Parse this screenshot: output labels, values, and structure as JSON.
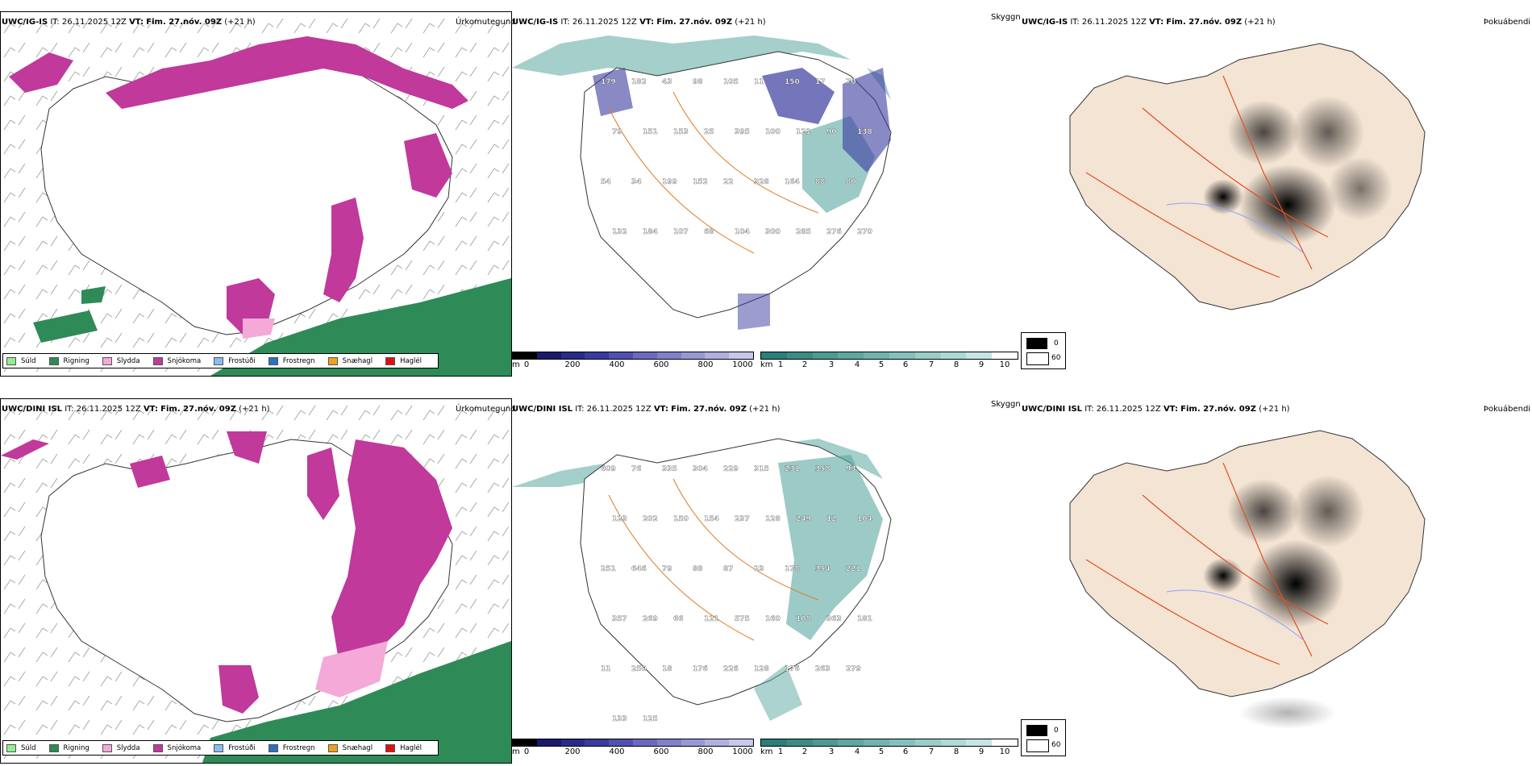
{
  "rows": [
    {
      "model": "UWC/IG-IS",
      "it_label": "IT:",
      "it_value": "26.11.2025 12Z",
      "vt_label": "VT:",
      "vt_value": "Fim. 27.nóv. 09Z",
      "lead": "(+21 h)",
      "numbers_a": [
        "179",
        "182",
        "43",
        "98",
        "105",
        "11",
        "150",
        "17",
        "70",
        "79",
        "151",
        "153",
        "25",
        "395",
        "100",
        "121",
        "90",
        "138",
        "54",
        "34",
        "199",
        "152",
        "22",
        "328",
        "164",
        "88",
        "80",
        "132",
        "184",
        "107",
        "68",
        "104",
        "300",
        "285",
        "276",
        "270"
      ],
      "numbers_b": []
    },
    {
      "model": "UWC/DINI ISL",
      "it_label": "IT:",
      "it_value": "26.11.2025 12Z",
      "vt_label": "VT:",
      "vt_value": "Fim. 27.nóv. 09Z",
      "lead": "(+21 h)",
      "numbers_a": [
        "609",
        "76",
        "335",
        "304",
        "229",
        "315",
        "231",
        "358",
        "93",
        "123",
        "202",
        "150",
        "154",
        "237",
        "128",
        "249",
        "12",
        "104",
        "251",
        "646",
        "79",
        "88",
        "87",
        "23",
        "178",
        "354",
        "221",
        "357",
        "269",
        "66",
        "121",
        "575",
        "160",
        "108",
        "363",
        "181",
        "11",
        "250",
        "18",
        "176",
        "226",
        "128",
        "176",
        "263",
        "279",
        "133",
        "125"
      ],
      "numbers_b": []
    }
  ],
  "panel_titles": {
    "precip": "Úrkomutegund",
    "cloud": "Skyggni",
    "fog": "Þokuábendi"
  },
  "precip_legend": [
    {
      "label": "Súld",
      "color": "#90ee90"
    },
    {
      "label": "Rigning",
      "color": "#2e8b57"
    },
    {
      "label": "Slydda",
      "color": "#f4a9d8"
    },
    {
      "label": "Snjókoma",
      "color": "#c0399b"
    },
    {
      "label": "Frostúði",
      "color": "#87bdf0"
    },
    {
      "label": "Frostregn",
      "color": "#2f6fc0"
    },
    {
      "label": "Snæhagl",
      "color": "#f0a020"
    },
    {
      "label": "Haglél",
      "color": "#e01010"
    }
  ],
  "height_scale": {
    "unit": "m",
    "ticks": [
      "0",
      "200",
      "400",
      "600",
      "800",
      "1000"
    ]
  },
  "vis_scale": {
    "unit": "km",
    "ticks": [
      "1",
      "2",
      "3",
      "4",
      "5",
      "6",
      "7",
      "8",
      "9",
      "10"
    ]
  },
  "fog_scale": {
    "top": "0",
    "bottom": "60"
  }
}
